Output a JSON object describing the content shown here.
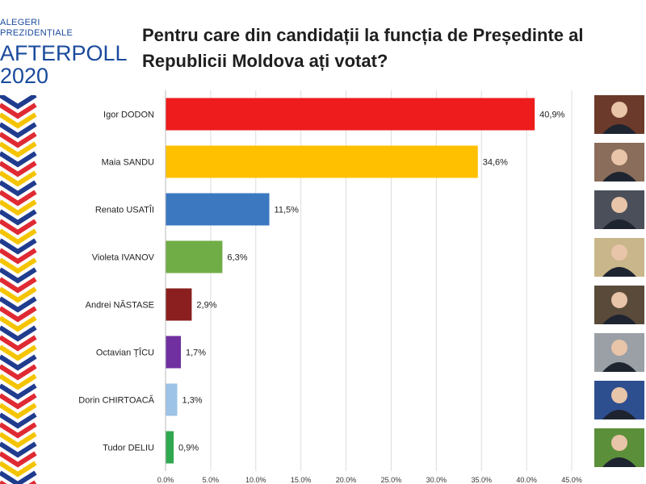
{
  "logo": {
    "line1": "ALEGERI",
    "line2": "PREZIDENȚIALE",
    "line3": "AFTERPOLL",
    "line4": "2020"
  },
  "colors": {
    "brand_blue": "#1a4a9c",
    "deco_blue": "#1f3c8e",
    "deco_red": "#e02a33",
    "deco_yellow": "#f5c400",
    "grid": "#dddddd"
  },
  "chart_data": {
    "type": "bar",
    "orientation": "horizontal",
    "title": "Pentru care din candidații la funcția de Președinte al Republicii Moldova ați votat?",
    "title_line1": "Pentru care din candidații la funcția de Președinte al",
    "title_line2": "Republicii Moldova ați votat?",
    "categories": [
      "Igor DODON",
      "Maia SANDU",
      "Renato USATÎI",
      "Violeta IVANOV",
      "Andrei NĂSTASE",
      "Octavian ȚÎCU",
      "Dorin CHIRTOACĂ",
      "Tudor DELIU"
    ],
    "values": [
      40.9,
      34.6,
      11.5,
      6.3,
      2.9,
      1.7,
      1.3,
      0.9
    ],
    "value_labels": [
      "40,9%",
      "34,6%",
      "11,5%",
      "6,3%",
      "2,9%",
      "1,7%",
      "1,3%",
      "0,9%"
    ],
    "bar_colors": [
      "#ee1c1c",
      "#ffc000",
      "#3c78c0",
      "#70ad47",
      "#8b1f1f",
      "#7030a0",
      "#9dc3e6",
      "#2fa84f"
    ],
    "xlim": [
      0,
      45
    ],
    "xticks": [
      0,
      5,
      10,
      15,
      20,
      25,
      30,
      35,
      40,
      45
    ],
    "xtick_labels": [
      "0.0%",
      "5.0%",
      "10.0%",
      "15.0%",
      "20.0%",
      "25.0%",
      "30.0%",
      "35.0%",
      "40.0%",
      "45.0%"
    ],
    "grid": true,
    "xlabel": "",
    "ylabel": ""
  },
  "portraits": [
    {
      "icon": "candidate-portrait-icon",
      "bg": "#6b3a2a"
    },
    {
      "icon": "candidate-portrait-icon",
      "bg": "#8a6d5a"
    },
    {
      "icon": "candidate-portrait-icon",
      "bg": "#4a4f5a"
    },
    {
      "icon": "candidate-portrait-icon",
      "bg": "#c9b68a"
    },
    {
      "icon": "candidate-portrait-icon",
      "bg": "#5a4a3a"
    },
    {
      "icon": "candidate-portrait-icon",
      "bg": "#9aa0a6"
    },
    {
      "icon": "candidate-portrait-icon",
      "bg": "#2e4f8f"
    },
    {
      "icon": "candidate-portrait-icon",
      "bg": "#5c8f3a"
    }
  ]
}
